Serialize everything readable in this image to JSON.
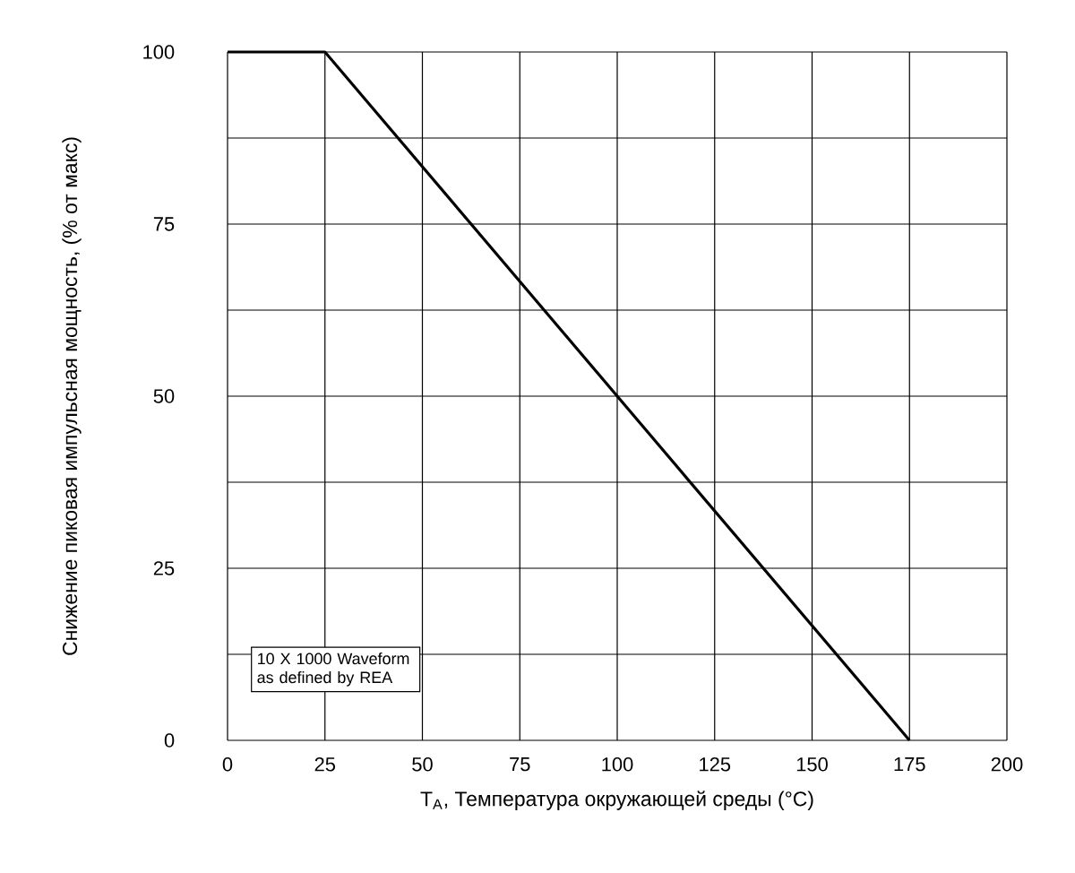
{
  "chart_data": {
    "type": "line",
    "xlabel": "T$_{A}$, Температура окружающей среды (°C)",
    "ylabel": "Снижение пиковая импульсная мощность, (% от макс)",
    "x": [
      0,
      25,
      175
    ],
    "series": [
      {
        "color": "#000000",
        "values": [
          100,
          100,
          0
        ]
      }
    ],
    "xlim": [
      0,
      200
    ],
    "ylim": [
      0,
      100
    ],
    "xticks": [
      0,
      25,
      50,
      75,
      100,
      125,
      150,
      175,
      200
    ],
    "yticks": [
      0,
      {
        "value": 12.5,
        "label": null
      },
      25,
      {
        "value": 37.5,
        "label": null
      },
      50,
      {
        "value": 62.5,
        "label": null
      },
      75,
      {
        "value": 87.5,
        "label": null
      },
      100
    ],
    "grid": true,
    "marker": "none",
    "line_style": "solid",
    "annotations": [
      "10 X 1000 Waveform as defined by REA"
    ]
  }
}
